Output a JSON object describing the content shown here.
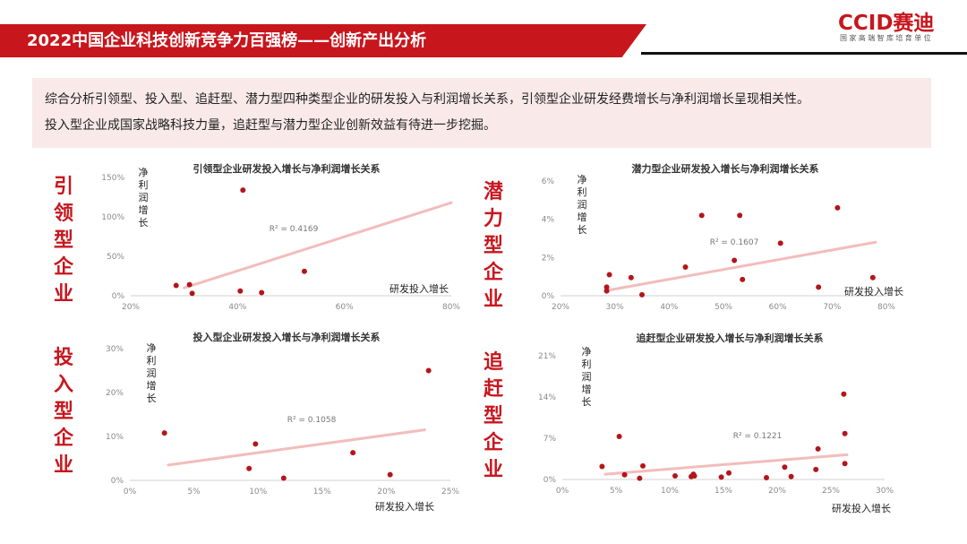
{
  "header": {
    "title": "2022中国企业科技创新竞争力百强榜——创新产出分析",
    "logo_text": "CCID赛迪",
    "logo_tagline": "国家高端智库培育单位"
  },
  "summary": {
    "line1": "综合分析引领型、投入型、追赶型、潜力型四种类型企业的研发投入与利润增长关系，引领型企业研发经费增长与净利润增长呈现相关性。",
    "line2": "投入型企业成国家战略科技力量，追赶型与潜力型企业创新效益有待进一步挖掘。"
  },
  "colors": {
    "accent": "#c8161d",
    "point": "#b3151b",
    "trend": "#f1b1b1",
    "summary_bg": "#f9e9e9"
  },
  "side_labels": {
    "leading": [
      "引",
      "领",
      "型",
      "企",
      "业"
    ],
    "potential": [
      "潜",
      "力",
      "型",
      "企",
      "业"
    ],
    "investment": [
      "投",
      "入",
      "型",
      "企",
      "业"
    ],
    "catchup": [
      "追",
      "赶",
      "型",
      "企",
      "业"
    ]
  },
  "chart_data": [
    {
      "type": "scatter",
      "title": "引领型企业研发投入增长与净利润增长关系",
      "xlabel": "研发投入增长",
      "ylabel": [
        "净",
        "利",
        "润",
        "增",
        "长"
      ],
      "xlim": [
        0.2,
        0.8
      ],
      "ylim": [
        0,
        1.5
      ],
      "xticks": [
        "20%",
        "40%",
        "60%",
        "80%"
      ],
      "yticks": [
        "0%",
        "50%",
        "100%",
        "150%"
      ],
      "r2": "R² = 0.4169",
      "trendline": [
        [
          0.3,
          0.1
        ],
        [
          0.8,
          1.18
        ]
      ],
      "points": [
        [
          0.285,
          0.13
        ],
        [
          0.31,
          0.14
        ],
        [
          0.315,
          0.03
        ],
        [
          0.405,
          0.06
        ],
        [
          0.41,
          1.34
        ],
        [
          0.445,
          0.04
        ],
        [
          0.525,
          0.31
        ]
      ]
    },
    {
      "type": "scatter",
      "title": "潜力型企业研发投入增长与净利润增长关系",
      "xlabel": "研发投入增长",
      "ylabel": [
        "净",
        "利",
        "润",
        "增",
        "长"
      ],
      "xlim": [
        0.2,
        0.8
      ],
      "ylim": [
        0,
        0.06
      ],
      "xticks": [
        "20%",
        "30%",
        "40%",
        "50%",
        "60%",
        "70%",
        "80%"
      ],
      "yticks": [
        "0%",
        "2%",
        "4%",
        "6%"
      ],
      "r2": "R² = 0.1607",
      "trendline": [
        [
          0.29,
          0.003
        ],
        [
          0.78,
          0.028
        ]
      ],
      "points": [
        [
          0.285,
          0.0025
        ],
        [
          0.285,
          0.0045
        ],
        [
          0.29,
          0.011
        ],
        [
          0.33,
          0.0095
        ],
        [
          0.35,
          0.0005
        ],
        [
          0.43,
          0.015
        ],
        [
          0.46,
          0.042
        ],
        [
          0.52,
          0.0185
        ],
        [
          0.53,
          0.042
        ],
        [
          0.535,
          0.0085
        ],
        [
          0.605,
          0.0275
        ],
        [
          0.675,
          0.0045
        ],
        [
          0.71,
          0.046
        ],
        [
          0.775,
          0.0095
        ]
      ]
    },
    {
      "type": "scatter",
      "title": "投入型企业研发投入增长与净利润增长关系",
      "xlabel": "研发投入增长",
      "ylabel": [
        "净",
        "利",
        "润",
        "增",
        "长"
      ],
      "xlim": [
        0,
        0.25
      ],
      "ylim": [
        0,
        0.3
      ],
      "xticks": [
        "0%",
        "5%",
        "10%",
        "15%",
        "20%",
        "25%"
      ],
      "yticks": [
        "0%",
        "10%",
        "20%",
        "30%"
      ],
      "r2": "R² = 0.1058",
      "trendline": [
        [
          0.03,
          0.035
        ],
        [
          0.23,
          0.115
        ]
      ],
      "points": [
        [
          0.027,
          0.108
        ],
        [
          0.093,
          0.027
        ],
        [
          0.098,
          0.083
        ],
        [
          0.12,
          0.005
        ],
        [
          0.174,
          0.063
        ],
        [
          0.203,
          0.013
        ],
        [
          0.233,
          0.25
        ]
      ]
    },
    {
      "type": "scatter",
      "title": "追赶型企业研发投入增长与净利润增长关系",
      "xlabel": "研发投入增长",
      "ylabel": [
        "净",
        "利",
        "润",
        "增",
        "长"
      ],
      "xlim": [
        0,
        0.3
      ],
      "ylim": [
        0,
        0.21
      ],
      "xticks": [
        "0%",
        "5%",
        "10%",
        "15%",
        "20%",
        "25%",
        "30%"
      ],
      "yticks": [
        "0%",
        "7%",
        "14%",
        "21%"
      ],
      "r2": "R² = 0.1221",
      "trendline": [
        [
          0.04,
          0.009
        ],
        [
          0.265,
          0.042
        ]
      ],
      "points": [
        [
          0.037,
          0.022
        ],
        [
          0.053,
          0.073
        ],
        [
          0.058,
          0.008
        ],
        [
          0.072,
          0.002
        ],
        [
          0.075,
          0.023
        ],
        [
          0.105,
          0.006
        ],
        [
          0.12,
          0.005
        ],
        [
          0.122,
          0.009
        ],
        [
          0.123,
          0.006
        ],
        [
          0.148,
          0.004
        ],
        [
          0.155,
          0.011
        ],
        [
          0.19,
          0.003
        ],
        [
          0.207,
          0.021
        ],
        [
          0.213,
          0.005
        ],
        [
          0.236,
          0.017
        ],
        [
          0.238,
          0.052
        ],
        [
          0.262,
          0.145
        ],
        [
          0.263,
          0.027
        ],
        [
          0.263,
          0.078
        ]
      ]
    }
  ]
}
